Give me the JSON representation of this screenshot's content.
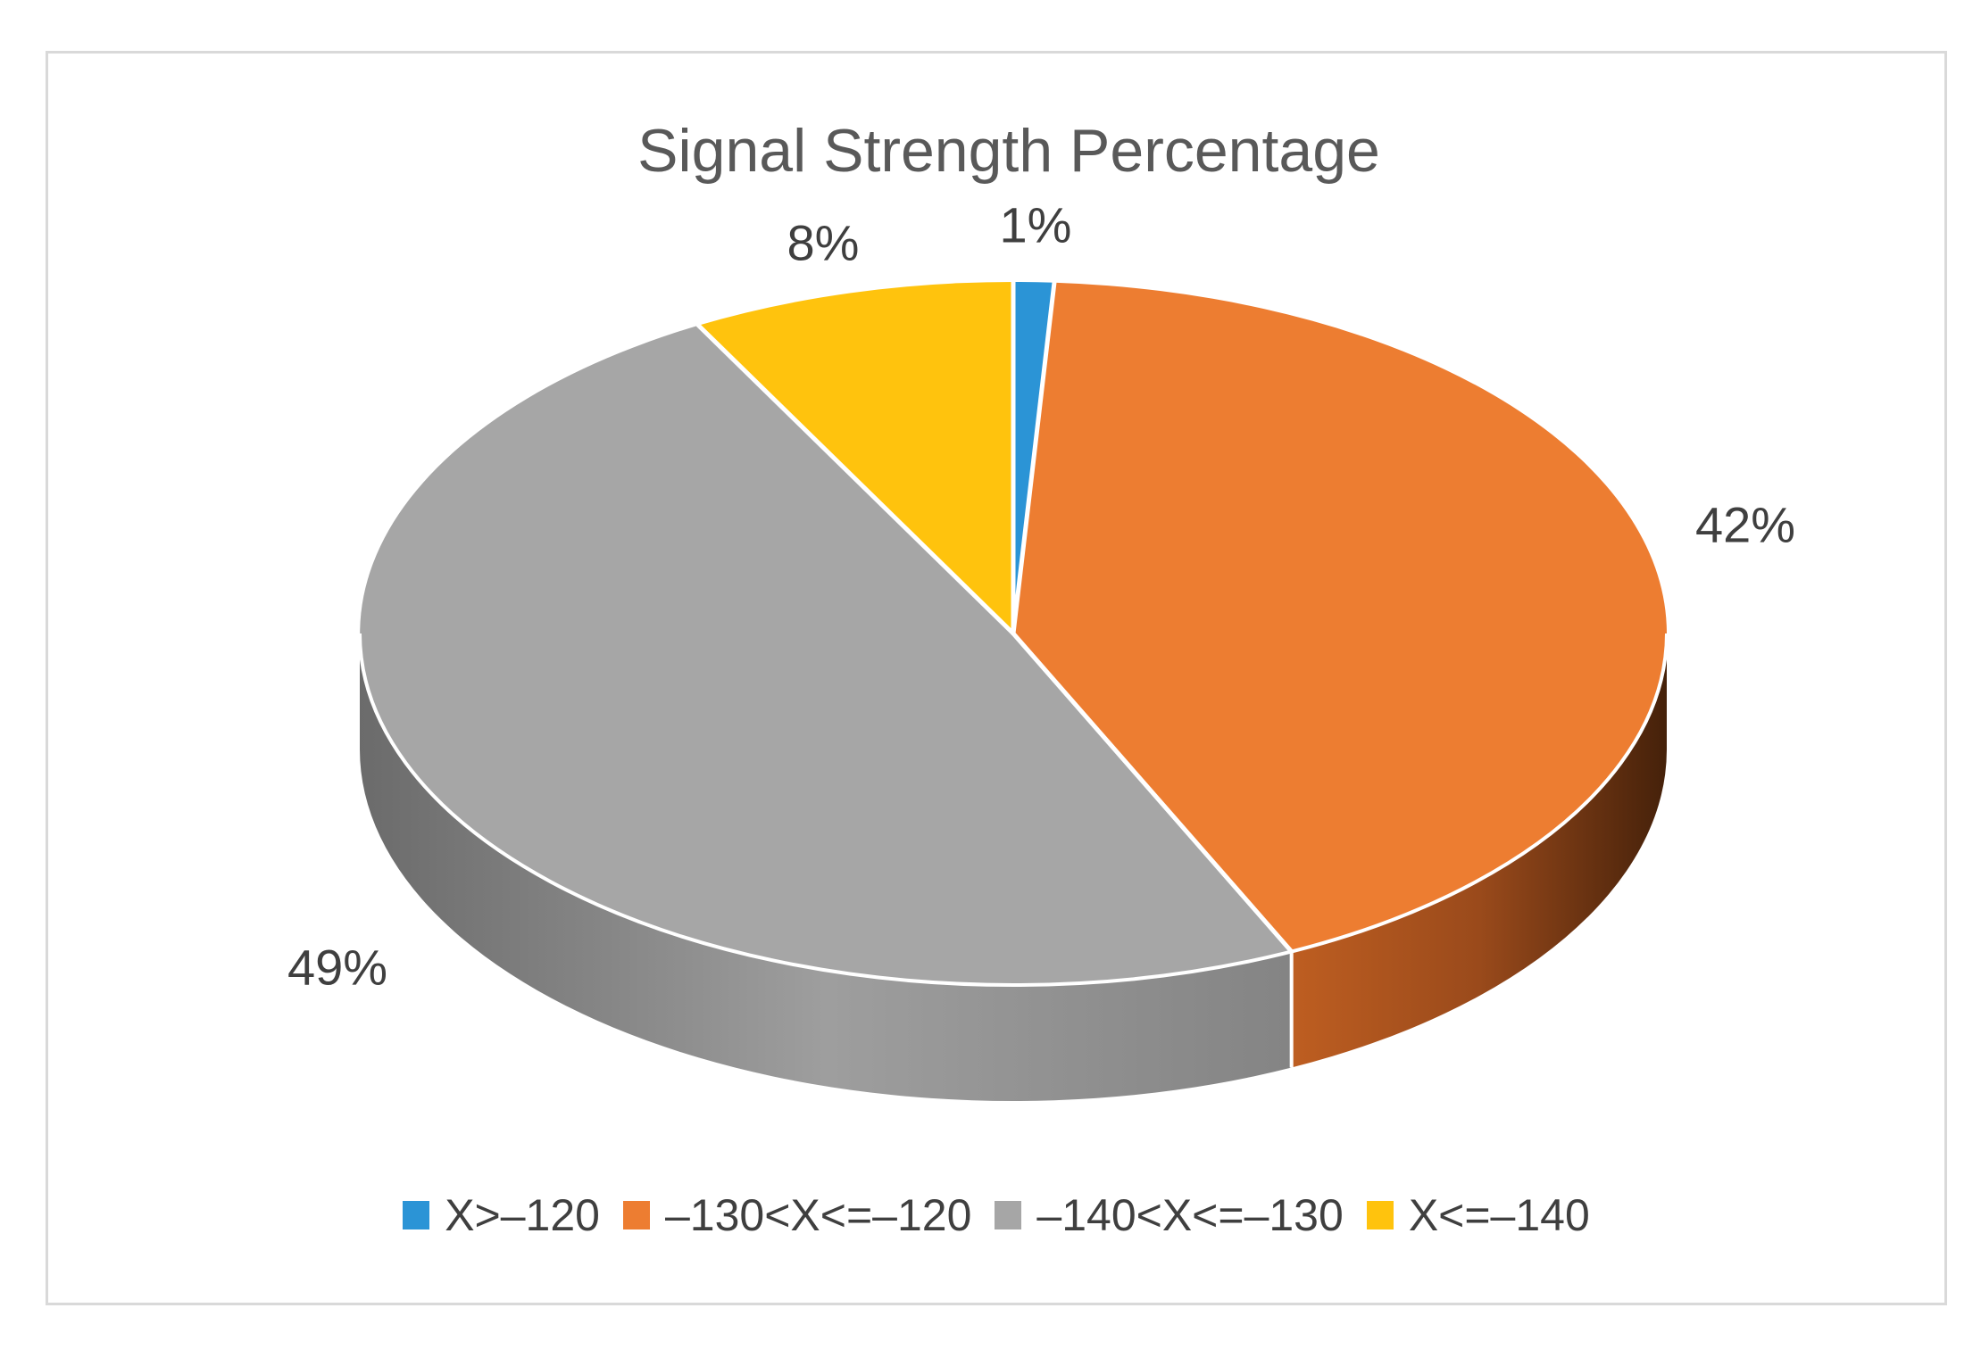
{
  "frame": {
    "border_color": "#D9D9D9",
    "background": "#ffffff"
  },
  "chart_data": {
    "type": "pie",
    "style": "3d",
    "title": "Signal Strength Percentage",
    "title_color": "#595959",
    "label_color": "#3F3F3F",
    "legend_position": "bottom",
    "start_angle_deg": 0,
    "direction": "clockwise",
    "categories": [
      "X>–120",
      "–130<X<=–120",
      "–140<X<=–130",
      "X<=–140"
    ],
    "values": [
      1,
      42,
      49,
      8
    ],
    "slice_labels": [
      "1%",
      "42%",
      "49%",
      "8%"
    ],
    "colors": [
      "#2B94D6",
      "#ED7D31",
      "#A6A6A6",
      "#FFC30D"
    ],
    "separator_color": "#FFFFFF",
    "wall_gradients": {
      "1": [
        "#BE5E21",
        "#9A4A1B",
        "#45210A"
      ],
      "2": [
        "#6B6B6B",
        "#9E9E9E",
        "#848484"
      ]
    }
  }
}
